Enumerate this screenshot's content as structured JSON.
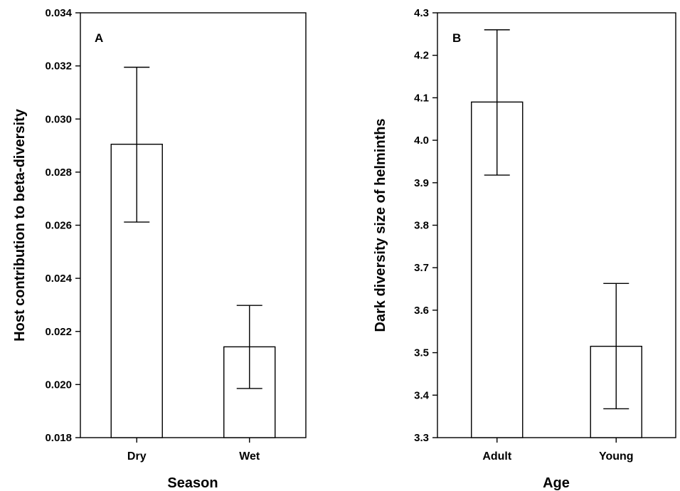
{
  "chart_data": [
    {
      "type": "bar",
      "panel_label": "A",
      "categories": [
        "Dry",
        "Wet"
      ],
      "values": [
        0.02905,
        0.02142
      ],
      "error_upper": [
        0.03195,
        0.02298
      ],
      "error_lower": [
        0.02612,
        0.01985
      ],
      "xlabel": "Season",
      "ylabel": "Host contribution to beta-diversity",
      "ylim": [
        0.018,
        0.034
      ],
      "yticks": [
        "0.018",
        "0.020",
        "0.022",
        "0.024",
        "0.026",
        "0.028",
        "0.030",
        "0.032",
        "0.034"
      ],
      "grid": false
    },
    {
      "type": "bar",
      "panel_label": "B",
      "categories": [
        "Adult",
        "Young"
      ],
      "values": [
        4.09,
        3.515
      ],
      "error_upper": [
        4.26,
        3.663
      ],
      "error_lower": [
        3.918,
        3.368
      ],
      "xlabel": "Age",
      "ylabel": "Dark diversity size of helminths",
      "ylim": [
        3.3,
        4.3
      ],
      "yticks": [
        "3.3",
        "3.4",
        "3.5",
        "3.6",
        "3.7",
        "3.8",
        "3.9",
        "4.0",
        "4.1",
        "4.2",
        "4.3"
      ],
      "grid": false
    }
  ]
}
